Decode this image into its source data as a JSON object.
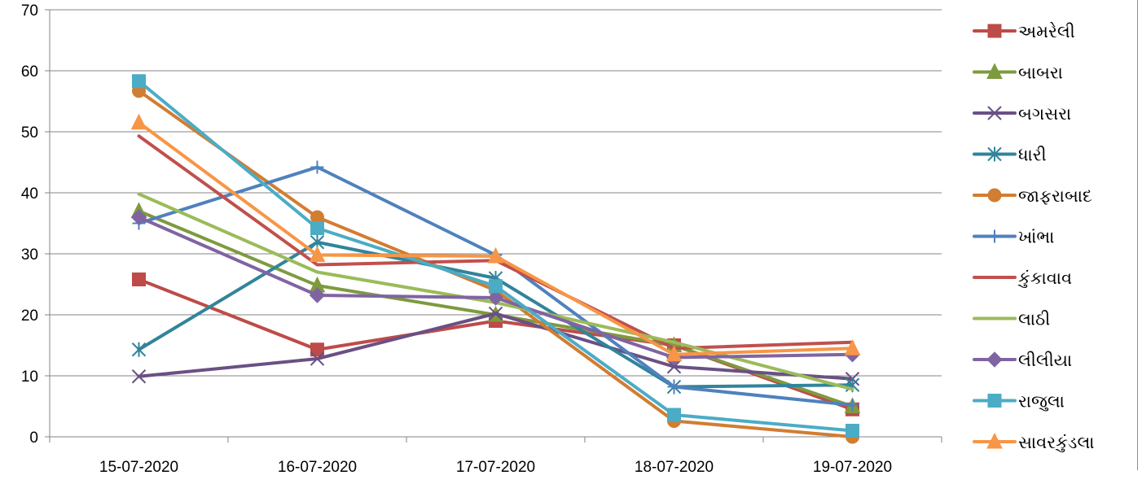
{
  "chart_data": {
    "type": "line",
    "categories": [
      "15-07-2020",
      "16-07-2020",
      "17-07-2020",
      "18-07-2020",
      "19-07-2020"
    ],
    "ylim": [
      0,
      70
    ],
    "yticks": [
      0,
      10,
      20,
      30,
      40,
      50,
      60,
      70
    ],
    "grid": "horizontal",
    "legend_position": "right",
    "series": [
      {
        "name": "અમરેલી",
        "values": [
          25.8,
          14.3,
          19.0,
          15.0,
          4.5
        ],
        "color": "#be4b48",
        "marker": "square"
      },
      {
        "name": "બાબરા",
        "values": [
          37.0,
          24.8,
          20.0,
          15.0,
          5.0
        ],
        "color": "#7e9a3f",
        "marker": "triangle"
      },
      {
        "name": "બગસરા",
        "values": [
          9.9,
          12.8,
          20.2,
          11.5,
          9.5
        ],
        "color": "#6a5084",
        "marker": "x"
      },
      {
        "name": "ધારી",
        "values": [
          14.3,
          31.9,
          26.0,
          8.2,
          8.5
        ],
        "color": "#31849b",
        "marker": "asterisk"
      },
      {
        "name": "જાફરાબાદ",
        "values": [
          56.7,
          36.0,
          24.0,
          2.6,
          0.0
        ],
        "color": "#d17d32",
        "marker": "circle"
      },
      {
        "name": "ખાંભા",
        "values": [
          35.0,
          44.2,
          29.8,
          8.2,
          5.2
        ],
        "color": "#4f81bd",
        "marker": "plus"
      },
      {
        "name": "કુંકાવાવ",
        "values": [
          49.3,
          28.2,
          28.9,
          14.5,
          15.5
        ],
        "color": "#c0504d",
        "marker": "none"
      },
      {
        "name": "લાઠી",
        "values": [
          39.8,
          27.0,
          22.0,
          15.5,
          7.8
        ],
        "color": "#9bbb59",
        "marker": "none"
      },
      {
        "name": "લીલીયા",
        "values": [
          36.0,
          23.2,
          22.8,
          13.0,
          13.5
        ],
        "color": "#8064a2",
        "marker": "diamond"
      },
      {
        "name": "રાજુલા",
        "values": [
          58.3,
          34.2,
          24.7,
          3.6,
          1.0
        ],
        "color": "#4bacc6",
        "marker": "square"
      },
      {
        "name": "સાવરકુંડલા",
        "values": [
          51.5,
          29.8,
          29.6,
          13.5,
          14.5
        ],
        "color": "#f79646",
        "marker": "triangle"
      }
    ]
  }
}
